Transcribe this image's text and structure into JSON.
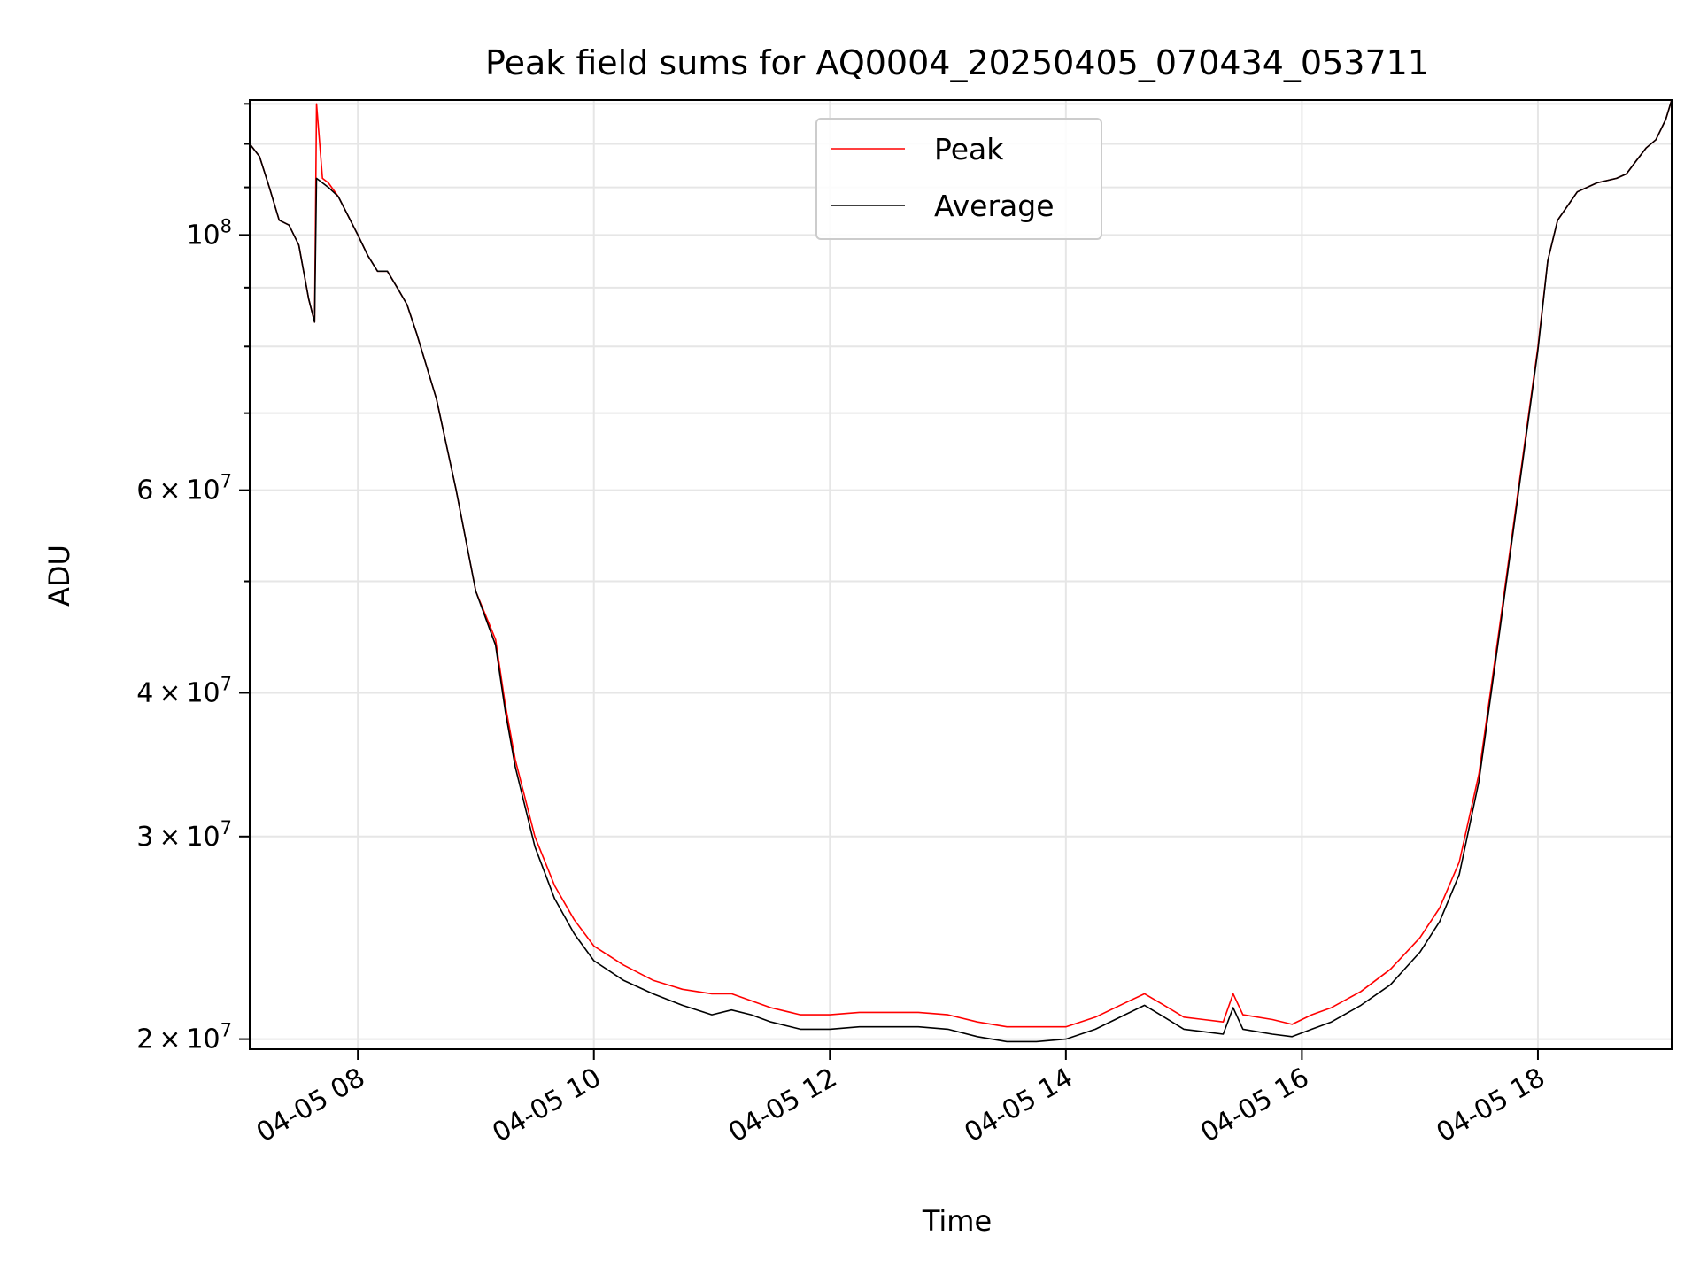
{
  "chart_data": {
    "type": "line",
    "title": "Peak field sums for AQ0004_20250405_070434_053711",
    "xlabel": "Time",
    "ylabel": "ADU",
    "yscale": "log",
    "grid": true,
    "legend": {
      "placement": "upper center",
      "entries": [
        "Peak",
        "Average"
      ]
    },
    "xlim": [
      "2025-04-05 07:05",
      "2025-04-05 19:08"
    ],
    "ylim": [
      19600000,
      131000000
    ],
    "x_ticks": [
      "04-05 08",
      "04-05 10",
      "04-05 12",
      "04-05 14",
      "04-05 16",
      "04-05 18"
    ],
    "y_ticks": [
      {
        "value": 20000000,
        "mantissa": "2",
        "exponent": "7"
      },
      {
        "value": 30000000,
        "mantissa": "3",
        "exponent": "7"
      },
      {
        "value": 40000000,
        "mantissa": "4",
        "exponent": "7"
      },
      {
        "value": 60000000,
        "mantissa": "6",
        "exponent": "7"
      },
      {
        "value": 100000000,
        "mantissa": "",
        "exponent": "8"
      }
    ],
    "x": [
      "07:05",
      "07:10",
      "07:15",
      "07:20",
      "07:25",
      "07:30",
      "07:35",
      "07:38",
      "07:39",
      "07:42",
      "07:45",
      "07:50",
      "08:00",
      "08:05",
      "08:10",
      "08:15",
      "08:20",
      "08:25",
      "08:30",
      "08:40",
      "08:50",
      "09:00",
      "09:10",
      "09:15",
      "09:20",
      "09:30",
      "09:40",
      "09:50",
      "10:00",
      "10:15",
      "10:30",
      "10:45",
      "11:00",
      "11:10",
      "11:20",
      "11:30",
      "11:45",
      "12:00",
      "12:15",
      "12:30",
      "12:45",
      "13:00",
      "13:15",
      "13:30",
      "13:45",
      "14:00",
      "14:15",
      "14:30",
      "14:40",
      "14:50",
      "15:00",
      "15:10",
      "15:20",
      "15:25",
      "15:30",
      "15:45",
      "15:55",
      "16:05",
      "16:15",
      "16:30",
      "16:45",
      "17:00",
      "17:10",
      "17:20",
      "17:30",
      "17:40",
      "17:50",
      "18:00",
      "18:05",
      "18:10",
      "18:20",
      "18:30",
      "18:40",
      "18:45",
      "18:50",
      "18:55",
      "19:00",
      "19:05",
      "19:08"
    ],
    "series": [
      {
        "name": "Peak",
        "color": "#ff0000",
        "values": [
          120000000,
          117000000,
          110000000,
          103000000,
          102000000,
          98000000,
          88000000,
          84000000,
          130000000,
          112000000,
          111000000,
          108000000,
          100000000,
          96000000,
          93000000,
          93000000,
          90000000,
          87000000,
          82000000,
          72000000,
          60000000,
          49000000,
          44500000,
          39000000,
          35000000,
          30000000,
          27200000,
          25400000,
          24100000,
          23200000,
          22500000,
          22100000,
          21900000,
          21900000,
          21600000,
          21300000,
          21000000,
          21000000,
          21100000,
          21100000,
          21100000,
          21000000,
          20700000,
          20500000,
          20500000,
          20500000,
          20900000,
          21500000,
          21900000,
          21400000,
          20900000,
          20800000,
          20700000,
          21900000,
          21000000,
          20800000,
          20600000,
          21000000,
          21300000,
          22000000,
          23000000,
          24500000,
          26000000,
          28500000,
          34000000,
          45000000,
          60000000,
          80000000,
          95000000,
          103000000,
          109000000,
          111000000,
          112000000,
          113000000,
          116000000,
          119000000,
          121000000,
          126000000,
          131000000
        ]
      },
      {
        "name": "Average",
        "color": "#000000",
        "values": [
          120000000,
          117000000,
          110000000,
          103000000,
          102000000,
          98000000,
          88000000,
          84000000,
          112000000,
          111000000,
          110000000,
          108000000,
          100000000,
          96000000,
          93000000,
          93000000,
          90000000,
          87000000,
          82000000,
          72000000,
          60000000,
          49000000,
          44000000,
          38500000,
          34500000,
          29400000,
          26500000,
          24700000,
          23400000,
          22500000,
          21900000,
          21400000,
          21000000,
          21200000,
          21000000,
          20700000,
          20400000,
          20400000,
          20500000,
          20500000,
          20500000,
          20400000,
          20100000,
          19900000,
          19900000,
          20000000,
          20400000,
          21000000,
          21400000,
          20900000,
          20400000,
          20300000,
          20200000,
          21300000,
          20400000,
          20200000,
          20100000,
          20400000,
          20700000,
          21400000,
          22300000,
          23800000,
          25300000,
          27800000,
          33500000,
          44500000,
          59500000,
          79500000,
          95000000,
          103000000,
          109000000,
          111000000,
          112000000,
          113000000,
          116000000,
          119000000,
          121000000,
          126000000,
          131000000
        ]
      }
    ]
  }
}
